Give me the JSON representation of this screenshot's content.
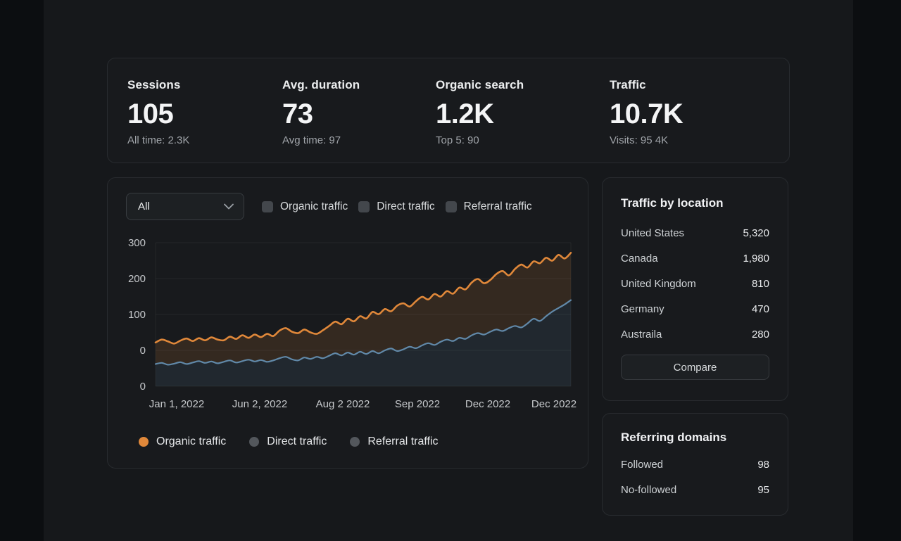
{
  "colors": {
    "organic": "#e0883a",
    "direct_blue": "#6189a9",
    "muted_dot": "#53575c",
    "organic_fill": "rgba(224,136,58,0.14)",
    "direct_fill": "rgba(97,137,169,0.13)"
  },
  "stats": {
    "cards": [
      {
        "label": "Sessions",
        "value": "105",
        "sub": "All time: 2.3K"
      },
      {
        "label": "Avg. duration",
        "value": "73",
        "sub": "Avg time: 97"
      },
      {
        "label": "Organic search",
        "value": "1.2K",
        "sub": "Top 5: 90"
      },
      {
        "label": "Traffic",
        "value": "10.7K",
        "sub": "Visits: 95 4K"
      }
    ]
  },
  "chart_panel": {
    "filter_dropdown": {
      "value": "All"
    },
    "checkboxes": [
      {
        "label": "Organic traffic",
        "checked": false
      },
      {
        "label": "Direct traffic",
        "checked": false
      },
      {
        "label": "Referral traffic",
        "checked": false
      }
    ],
    "legend": [
      {
        "label": "Organic traffic",
        "color": "#e0883a"
      },
      {
        "label": "Direct traffic",
        "color": "#53575c"
      },
      {
        "label": "Referral traffic",
        "color": "#53575c"
      }
    ]
  },
  "chart_data": {
    "type": "area",
    "title": "",
    "xlabel": "",
    "ylabel": "",
    "grid": true,
    "legend_position": "bottom",
    "ylim": [
      -100,
      300
    ],
    "y_ticks": [
      "300",
      "200",
      "100",
      "0",
      "0"
    ],
    "x_labels": [
      "Jan 1, 2022",
      "Jun 2, 2022",
      "Aug 2 2022",
      "Sep 2022",
      "Dec 2022",
      "Dec 2022"
    ],
    "series": [
      {
        "name": "Organic traffic",
        "color": "#e0883a",
        "fill": "rgba(224,136,58,0.14)",
        "values": [
          22,
          30,
          25,
          19,
          27,
          33,
          26,
          34,
          28,
          36,
          30,
          28,
          38,
          32,
          42,
          35,
          44,
          37,
          46,
          40,
          55,
          62,
          52,
          48,
          58,
          50,
          46,
          56,
          68,
          80,
          73,
          88,
          81,
          95,
          89,
          107,
          101,
          115,
          109,
          125,
          131,
          122,
          137,
          149,
          142,
          157,
          150,
          165,
          158,
          175,
          170,
          189,
          199,
          187,
          196,
          213,
          221,
          209,
          227,
          239,
          231,
          248,
          243,
          258,
          250,
          266,
          256,
          272
        ]
      },
      {
        "name": "Direct traffic",
        "color": "#6189a9",
        "fill": "rgba(97,137,169,0.13)",
        "values": [
          -38,
          -35,
          -40,
          -37,
          -33,
          -38,
          -34,
          -30,
          -35,
          -31,
          -36,
          -32,
          -28,
          -34,
          -30,
          -26,
          -31,
          -27,
          -32,
          -28,
          -22,
          -18,
          -25,
          -28,
          -20,
          -24,
          -18,
          -22,
          -15,
          -8,
          -14,
          -6,
          -12,
          -4,
          -10,
          -2,
          -8,
          0,
          5,
          -2,
          3,
          10,
          6,
          14,
          20,
          15,
          24,
          30,
          26,
          35,
          32,
          42,
          48,
          44,
          52,
          58,
          54,
          62,
          68,
          64,
          75,
          88,
          82,
          95,
          108,
          118,
          128,
          140
        ]
      }
    ]
  },
  "traffic_by_location": {
    "title": "Traffic by location",
    "rows": [
      [
        "United States",
        "5,320"
      ],
      [
        "Canada",
        "1,980"
      ],
      [
        "United Kingdom",
        "810"
      ],
      [
        "Germany",
        "470"
      ],
      [
        "Austraila",
        "280"
      ]
    ],
    "button": "Compare"
  },
  "referring_domains": {
    "title": "Referring domains",
    "rows": [
      [
        "Followed",
        "98"
      ],
      [
        "No-followed",
        "95"
      ]
    ]
  }
}
